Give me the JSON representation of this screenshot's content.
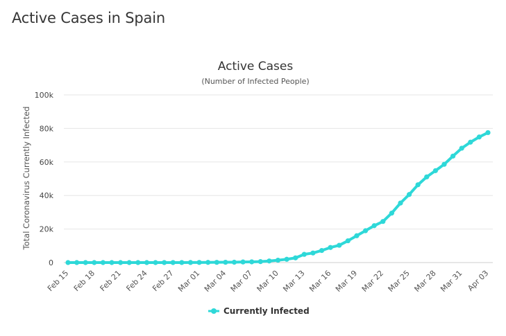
{
  "page": {
    "title": "Active Cases in Spain"
  },
  "chart_data": {
    "type": "line",
    "title": "Active Cases",
    "subtitle": "(Number of Infected People)",
    "ylabel": "Total Coronavirus Currently Infected",
    "xlabel": "",
    "ylim": [
      0,
      100000
    ],
    "y_ticks": [
      0,
      20000,
      40000,
      60000,
      80000,
      100000
    ],
    "y_tick_labels": [
      "0",
      "20k",
      "40k",
      "60k",
      "80k",
      "100k"
    ],
    "x": [
      "Feb 15",
      "Feb 16",
      "Feb 17",
      "Feb 18",
      "Feb 19",
      "Feb 20",
      "Feb 21",
      "Feb 22",
      "Feb 23",
      "Feb 24",
      "Feb 25",
      "Feb 26",
      "Feb 27",
      "Feb 28",
      "Feb 29",
      "Mar 01",
      "Mar 02",
      "Mar 03",
      "Mar 04",
      "Mar 05",
      "Mar 06",
      "Mar 07",
      "Mar 08",
      "Mar 09",
      "Mar 10",
      "Mar 11",
      "Mar 12",
      "Mar 13",
      "Mar 14",
      "Mar 15",
      "Mar 16",
      "Mar 17",
      "Mar 18",
      "Mar 19",
      "Mar 20",
      "Mar 21",
      "Mar 22",
      "Mar 23",
      "Mar 24",
      "Mar 25",
      "Mar 26",
      "Mar 27",
      "Mar 28",
      "Mar 29",
      "Mar 30",
      "Mar 31",
      "Apr 01",
      "Apr 02",
      "Apr 03"
    ],
    "x_tick_labels": [
      "Feb 15",
      "Feb 18",
      "Feb 21",
      "Feb 24",
      "Feb 27",
      "Mar 01",
      "Mar 04",
      "Mar 07",
      "Mar 10",
      "Mar 13",
      "Mar 16",
      "Mar 19",
      "Mar 22",
      "Mar 25",
      "Mar 28",
      "Mar 31",
      "Apr 03"
    ],
    "series": [
      {
        "name": "Currently Infected",
        "color": "#2ed8d8",
        "values": [
          2,
          2,
          2,
          2,
          2,
          2,
          2,
          2,
          2,
          2,
          4,
          10,
          13,
          21,
          38,
          73,
          106,
          136,
          187,
          204,
          353,
          423,
          569,
          942,
          1407,
          1950,
          2800,
          4900,
          5700,
          7200,
          9000,
          10300,
          13000,
          16000,
          19000,
          22000,
          24500,
          29500,
          35500,
          40600,
          46400,
          51100,
          54800,
          58600,
          63500,
          68200,
          71800,
          74900,
          77500
        ]
      }
    ],
    "legend": {
      "position": "bottom-center",
      "label": "Currently Infected"
    },
    "grid": true
  }
}
